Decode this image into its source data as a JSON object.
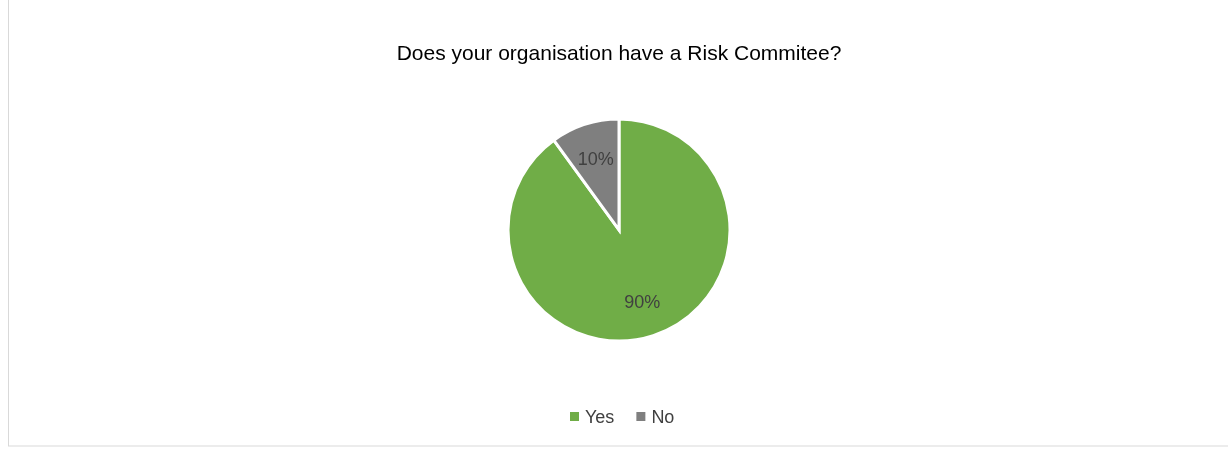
{
  "chart_data": {
    "type": "pie",
    "title": "Does your organisation have a Risk Commitee?",
    "categories": [
      "Yes",
      "No"
    ],
    "values": [
      90,
      10
    ],
    "colors": [
      "#70ad47",
      "#7f7f7f"
    ],
    "value_labels": [
      "90%",
      "10%"
    ],
    "legend": "bottom"
  }
}
